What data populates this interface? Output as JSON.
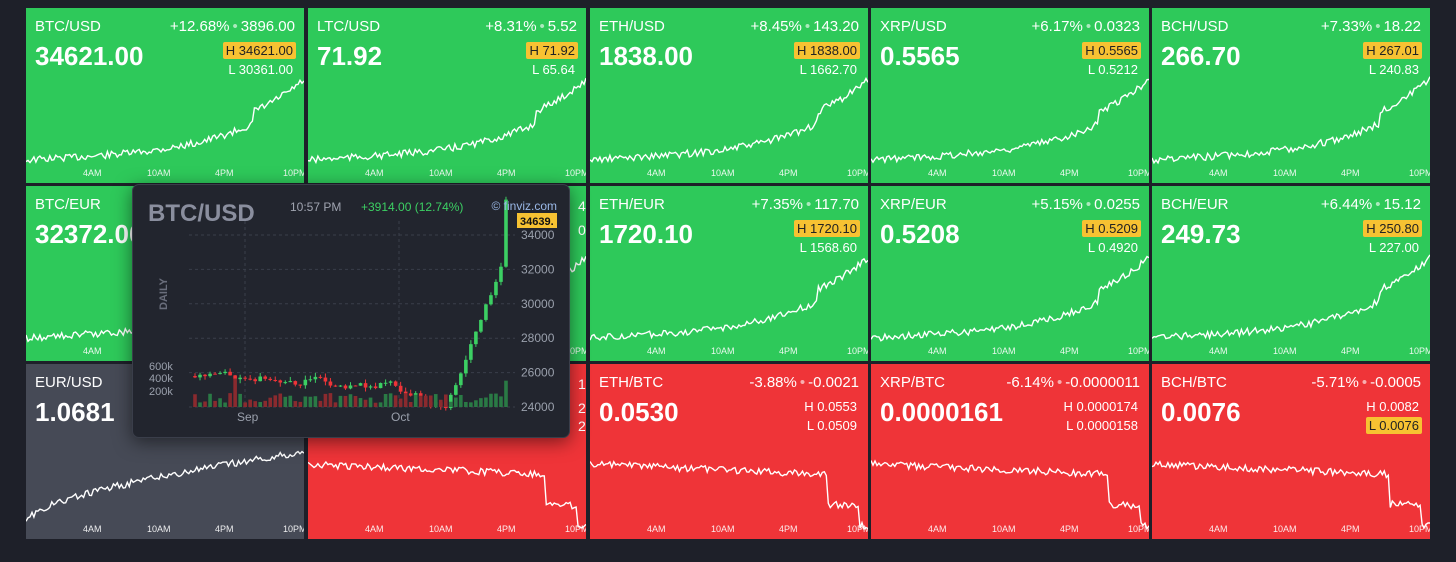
{
  "tiles": [
    {
      "symbol": "BTC/USD",
      "change_pct": "+12.68%",
      "change_abs": "3896.00",
      "price": "34621.00",
      "high": "34621.00",
      "low": "30361.00",
      "high_marked": true,
      "low_marked": false,
      "trend": "up",
      "color": "green"
    },
    {
      "symbol": "LTC/USD",
      "change_pct": "+8.31%",
      "change_abs": "5.52",
      "price": "71.92",
      "high": "71.92",
      "low": "65.64",
      "high_marked": true,
      "low_marked": false,
      "trend": "up",
      "color": "green"
    },
    {
      "symbol": "ETH/USD",
      "change_pct": "+8.45%",
      "change_abs": "143.20",
      "price": "1838.00",
      "high": "1838.00",
      "low": "1662.70",
      "high_marked": true,
      "low_marked": false,
      "trend": "up",
      "color": "green"
    },
    {
      "symbol": "XRP/USD",
      "change_pct": "+6.17%",
      "change_abs": "0.0323",
      "price": "0.5565",
      "high": "0.5565",
      "low": "0.5212",
      "high_marked": true,
      "low_marked": false,
      "trend": "up",
      "color": "green"
    },
    {
      "symbol": "BCH/USD",
      "change_pct": "+7.33%",
      "change_abs": "18.22",
      "price": "266.70",
      "high": "267.01",
      "low": "240.83",
      "high_marked": true,
      "low_marked": false,
      "trend": "up",
      "color": "green"
    },
    {
      "symbol": "BTC/EUR",
      "change_pct": "",
      "change_abs": "",
      "price": "32372.00",
      "high": "",
      "low": "",
      "high_marked": false,
      "low_marked": false,
      "trend": "up",
      "color": "green"
    },
    {
      "symbol": "",
      "change_pct": "",
      "change_abs": "",
      "price": "",
      "high": "",
      "low": "",
      "high_marked": false,
      "low_marked": false,
      "trend": "up",
      "color": "green"
    },
    {
      "symbol": "ETH/EUR",
      "change_pct": "+7.35%",
      "change_abs": "117.70",
      "price": "1720.10",
      "high": "1720.10",
      "low": "1568.60",
      "high_marked": true,
      "low_marked": false,
      "trend": "up",
      "color": "green"
    },
    {
      "symbol": "XRP/EUR",
      "change_pct": "+5.15%",
      "change_abs": "0.0255",
      "price": "0.5208",
      "high": "0.5209",
      "low": "0.4920",
      "high_marked": true,
      "low_marked": false,
      "trend": "up",
      "color": "green"
    },
    {
      "symbol": "BCH/EUR",
      "change_pct": "+6.44%",
      "change_abs": "15.12",
      "price": "249.73",
      "high": "250.80",
      "low": "227.00",
      "high_marked": true,
      "low_marked": false,
      "trend": "up",
      "color": "green"
    },
    {
      "symbol": "EUR/USD",
      "change_pct": "",
      "change_abs": "",
      "price": "1.0681",
      "high": "",
      "low": "",
      "high_marked": false,
      "low_marked": false,
      "trend": "flat-up",
      "color": "gray"
    },
    {
      "symbol": "",
      "change_pct": "",
      "change_abs": "",
      "price": "",
      "high": "",
      "low": "",
      "high_marked": false,
      "low_marked": false,
      "trend": "down",
      "color": "red"
    },
    {
      "symbol": "ETH/BTC",
      "change_pct": "-3.88%",
      "change_abs": "-0.0021",
      "price": "0.0530",
      "high": "0.0553",
      "low": "0.0509",
      "high_marked": false,
      "low_marked": false,
      "trend": "down",
      "color": "red"
    },
    {
      "symbol": "XRP/BTC",
      "change_pct": "-6.14%",
      "change_abs": "-0.0000011",
      "price": "0.0000161",
      "high": "0.0000174",
      "low": "0.0000158",
      "high_marked": false,
      "low_marked": false,
      "trend": "down",
      "color": "red"
    },
    {
      "symbol": "BCH/BTC",
      "change_pct": "-5.71%",
      "change_abs": "-0.0005",
      "price": "0.0076",
      "high": "0.0082",
      "low": "0.0076",
      "high_marked": false,
      "low_marked": true,
      "trend": "down",
      "color": "red"
    }
  ],
  "time_labels": [
    "4AM",
    "10AM",
    "4PM",
    "10PM"
  ],
  "high_prefix": "H",
  "low_prefix": "L",
  "colors": {
    "up": "#2ec95a",
    "down": "#ef3438",
    "neutral": "#464a56",
    "marker": "#f7c232"
  },
  "popup": {
    "title": "BTC/USD",
    "time": "10:57 PM",
    "change": "+3914.00 (12.74%)",
    "source": "finviz.com",
    "period": "DAILY",
    "last_price": "34639.",
    "price_ticks": [
      "34000",
      "32000",
      "30000",
      "28000",
      "26000",
      "24000"
    ],
    "volume_ticks": [
      "600k",
      "400k",
      "200k"
    ],
    "month_labels": [
      "Sep",
      "Oct"
    ]
  },
  "partial_occluded": {
    "row2_col2_right_edge": [
      "4",
      "0"
    ],
    "row3_col2_right_edge": [
      "1",
      "2",
      "2"
    ]
  }
}
